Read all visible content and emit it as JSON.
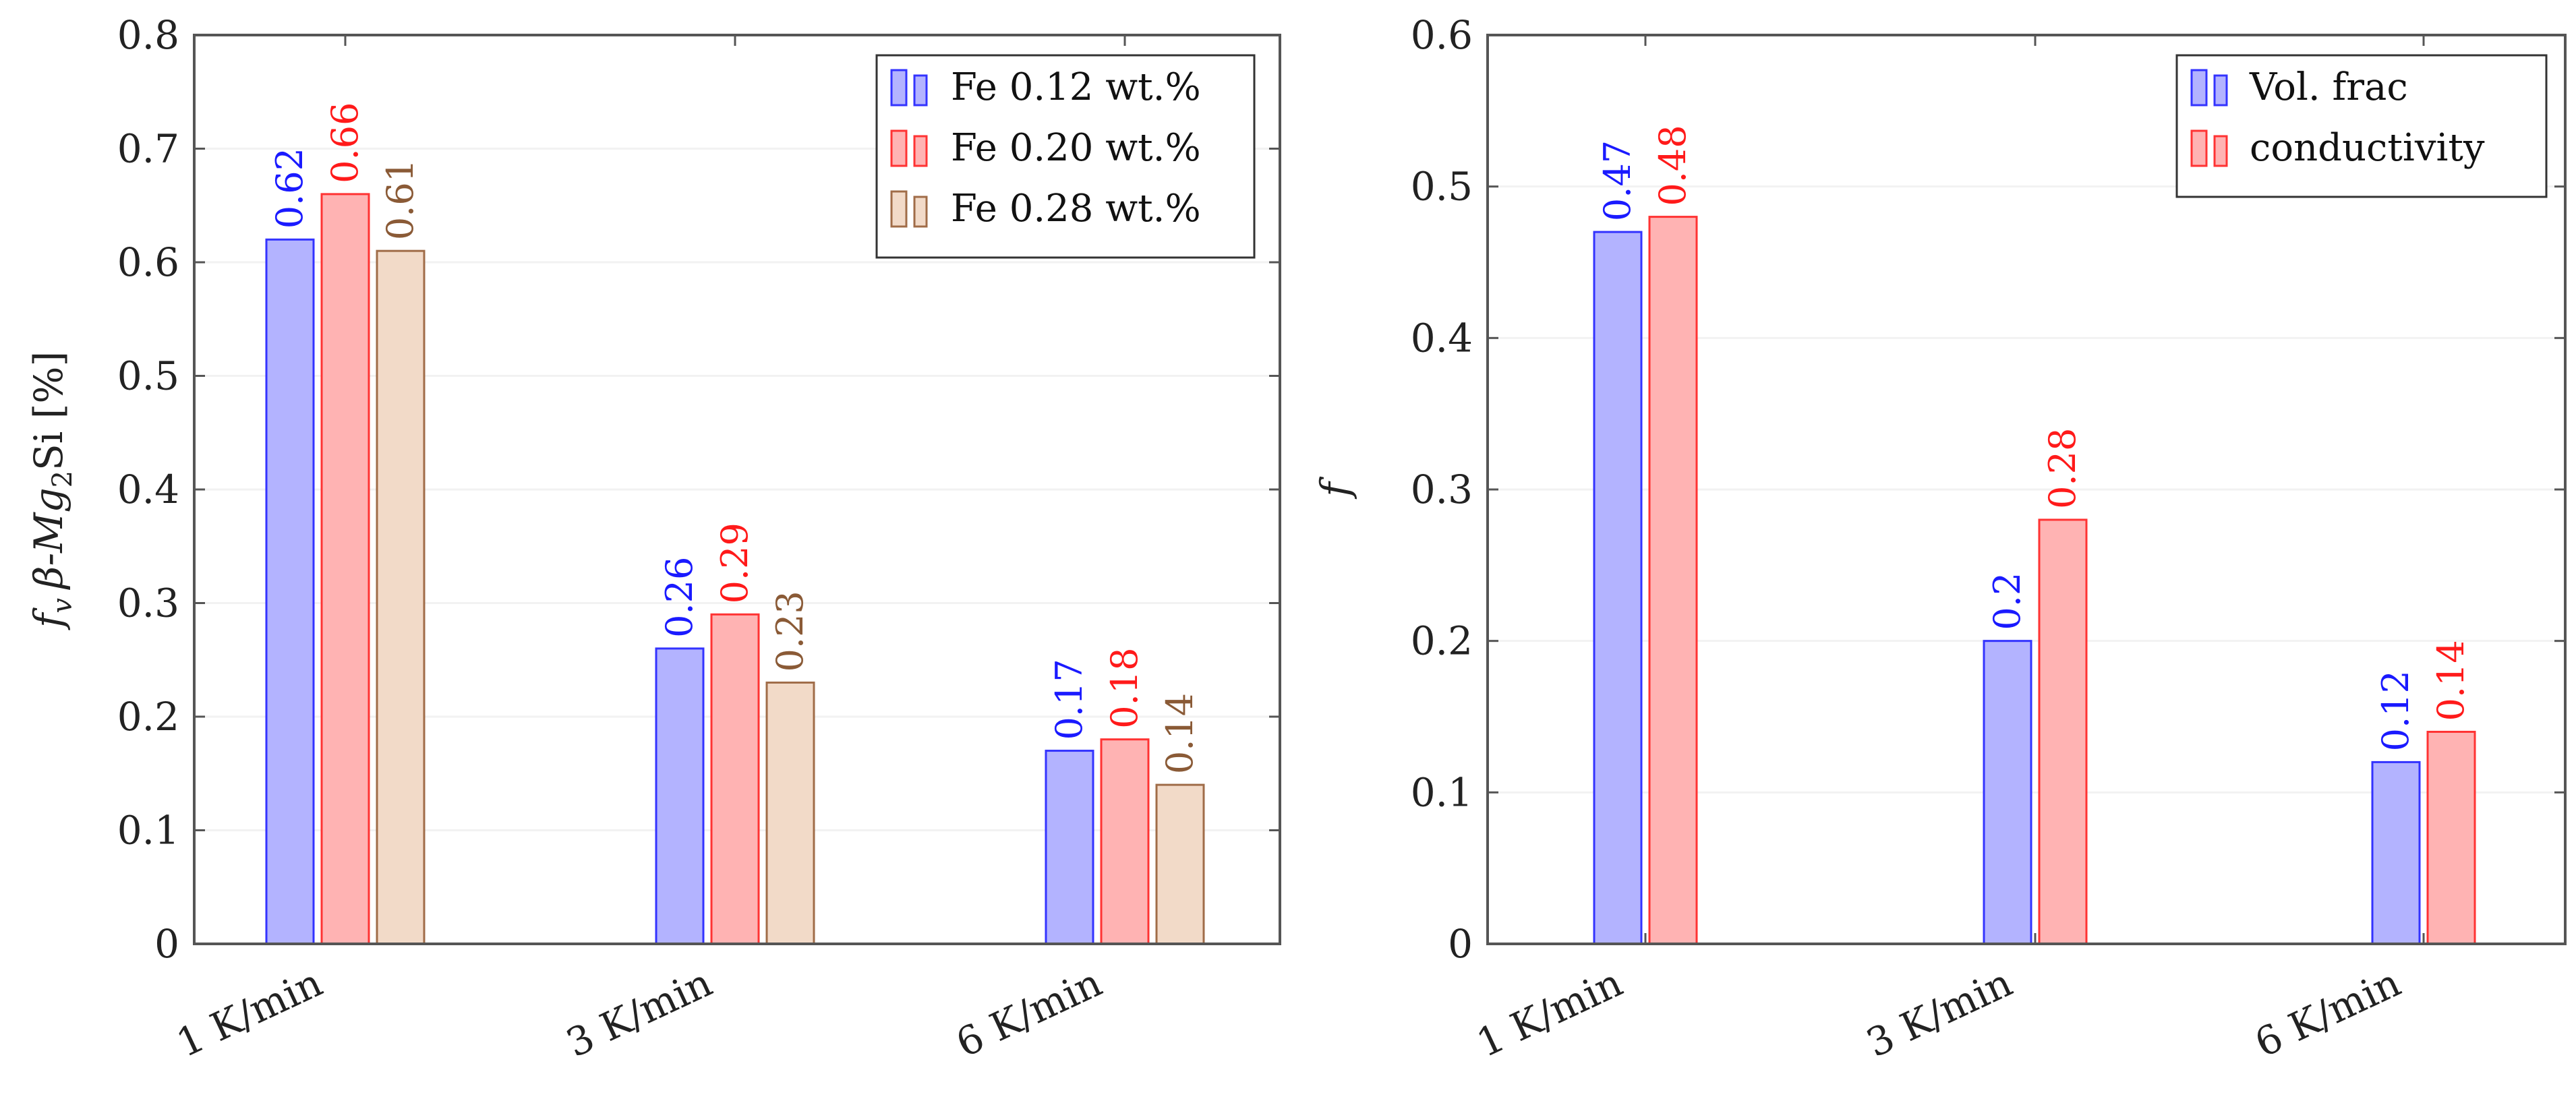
{
  "chart_data": [
    {
      "type": "bar",
      "categories": [
        "1 K/min",
        "3 K/min",
        "6 K/min"
      ],
      "ylabel": "f_v β-Mg2Si [%]",
      "ylabel_parts": {
        "f": "f",
        "v": "v",
        "beta": "β-Mg",
        "two": "2",
        "si": "Si [%]"
      },
      "ylim": [
        0,
        0.8
      ],
      "yticks": [
        "0",
        "0.1",
        "0.2",
        "0.3",
        "0.4",
        "0.5",
        "0.6",
        "0.7",
        "0.8"
      ],
      "grid": true,
      "legend_position": "top-right",
      "series": [
        {
          "name": "Fe 0.12 wt.%",
          "values": [
            0.62,
            0.26,
            0.17
          ],
          "labels": [
            "0.62",
            "0.26",
            "0.17"
          ],
          "fill": "#b3b3ff",
          "stroke": "#3333ff",
          "text": "#1a1aff"
        },
        {
          "name": "Fe 0.20 wt.%",
          "values": [
            0.66,
            0.29,
            0.18
          ],
          "labels": [
            "0.66",
            "0.29",
            "0.18"
          ],
          "fill": "#ffb3b3",
          "stroke": "#ff3333",
          "text": "#ff1a1a"
        },
        {
          "name": "Fe 0.28 wt.%",
          "values": [
            0.61,
            0.23,
            0.14
          ],
          "labels": [
            "0.61",
            "0.23",
            "0.14"
          ],
          "fill": "#f2dac8",
          "stroke": "#a06c48",
          "text": "#8a5a36"
        }
      ]
    },
    {
      "type": "bar",
      "categories": [
        "1 K/min",
        "3 K/min",
        "6 K/min"
      ],
      "ylabel": "f",
      "ylim": [
        0,
        0.6
      ],
      "yticks": [
        "0",
        "0.1",
        "0.2",
        "0.3",
        "0.4",
        "0.5",
        "0.6"
      ],
      "grid": true,
      "legend_position": "top-right",
      "series": [
        {
          "name": "Vol. frac",
          "values": [
            0.47,
            0.2,
            0.12
          ],
          "labels": [
            "0.47",
            "0.2",
            "0.12"
          ],
          "fill": "#b3b3ff",
          "stroke": "#3333ff",
          "text": "#1a1aff"
        },
        {
          "name": "conductivity",
          "values": [
            0.48,
            0.28,
            0.14
          ],
          "labels": [
            "0.48",
            "0.28",
            "0.14"
          ],
          "fill": "#ffb3b3",
          "stroke": "#ff3333",
          "text": "#ff1a1a"
        }
      ]
    }
  ]
}
